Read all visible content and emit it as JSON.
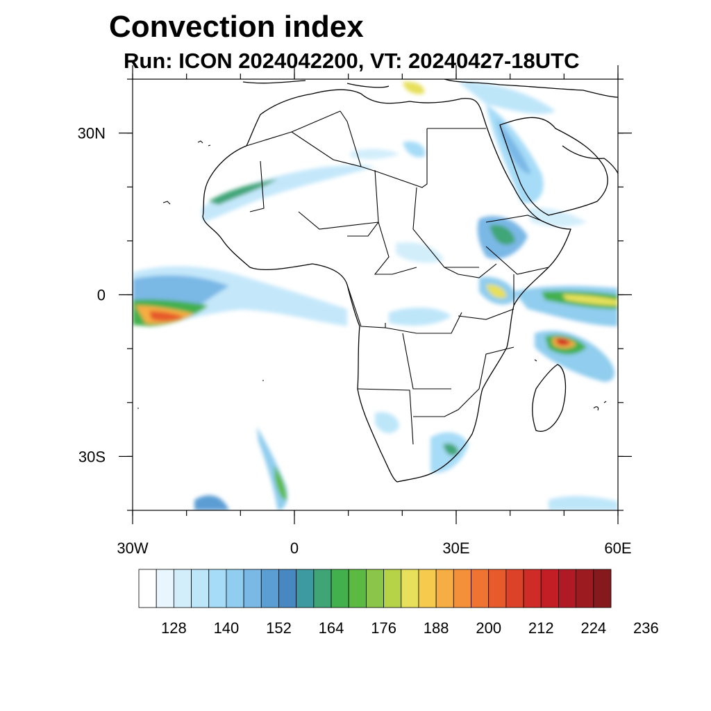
{
  "title": "Convection index",
  "subtitle": "Run: ICON 2024042200,  VT: 20240427-18UTC",
  "map": {
    "lon_range": [
      -30,
      60
    ],
    "lat_range": [
      -40,
      40
    ],
    "lat_ticks": [
      {
        "value": 30,
        "label": "30N"
      },
      {
        "value": 0,
        "label": "0"
      },
      {
        "value": -30,
        "label": "30S"
      }
    ],
    "lon_ticks": [
      {
        "value": -30,
        "label": "30W"
      },
      {
        "value": 0,
        "label": "0"
      },
      {
        "value": 30,
        "label": "30E"
      },
      {
        "value": 60,
        "label": "60E"
      }
    ],
    "minor_lon_step": 10,
    "minor_lat_step": 10
  },
  "colorbar": {
    "colors": [
      "#ffffff",
      "#e9f6fd",
      "#d3eefb",
      "#bee6f9",
      "#a6dcf7",
      "#90cdee",
      "#7ab8e6",
      "#5b9ed4",
      "#4788c1",
      "#3d9aa0",
      "#3fa577",
      "#43b04e",
      "#5bba42",
      "#8bc64a",
      "#b6d348",
      "#e6e05a",
      "#f6cb4d",
      "#f6ad43",
      "#f5903a",
      "#ef7431",
      "#e65a2b",
      "#dc4228",
      "#d02c27",
      "#c31e26",
      "#b01a24",
      "#9c1b20",
      "#86191b"
    ],
    "labels": [
      "128",
      "140",
      "152",
      "164",
      "176",
      "188",
      "200",
      "212",
      "224",
      "236"
    ]
  }
}
